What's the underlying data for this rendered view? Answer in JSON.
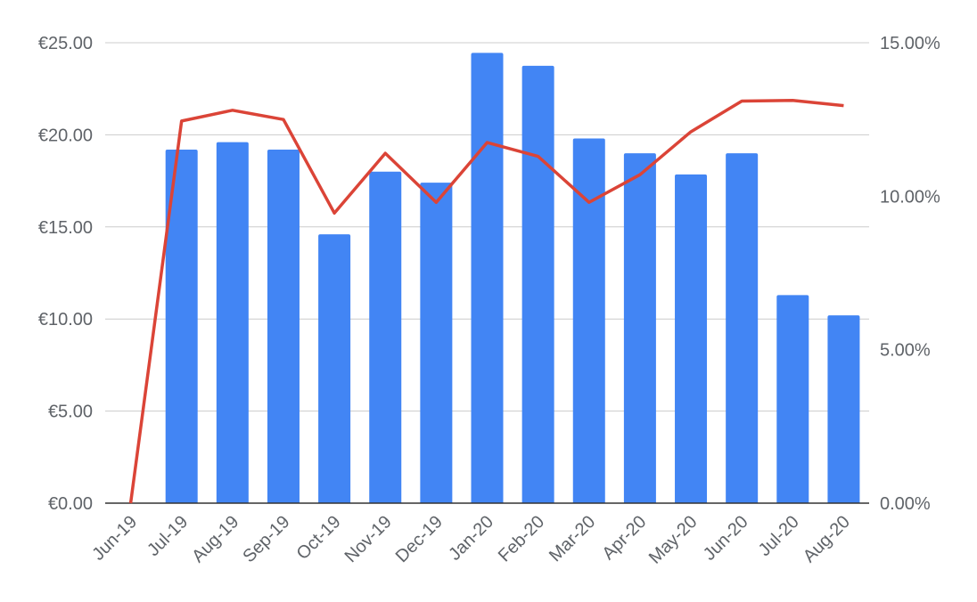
{
  "chart_data": {
    "type": "bar",
    "categories": [
      "Jun-19",
      "Jul-19",
      "Aug-19",
      "Sep-19",
      "Oct-19",
      "Nov-19",
      "Dec-19",
      "Jan-20",
      "Feb-20",
      "Mar-20",
      "Apr-20",
      "May-20",
      "Jun-20",
      "Jul-20",
      "Aug-20"
    ],
    "series": [
      {
        "type": "bar",
        "axis": "left",
        "color": "#4285f4",
        "values": [
          0,
          19.2,
          19.6,
          19.2,
          14.6,
          18.0,
          17.4,
          24.45,
          23.75,
          19.8,
          19.0,
          17.85,
          19.0,
          11.3,
          10.2
        ]
      },
      {
        "type": "line",
        "axis": "right",
        "color": "#db4437",
        "values": [
          0.0,
          12.45,
          12.8,
          12.5,
          9.45,
          11.4,
          9.8,
          11.75,
          11.3,
          9.8,
          10.7,
          12.1,
          13.1,
          13.12,
          12.95
        ]
      }
    ],
    "y_left": {
      "ylim": [
        0,
        25
      ],
      "ticks": [
        0,
        5,
        10,
        15,
        20,
        25
      ],
      "tick_labels": [
        "€0.00",
        "€5.00",
        "€10.00",
        "€15.00",
        "€20.00",
        "€25.00"
      ]
    },
    "y_right": {
      "ylim": [
        0,
        15
      ],
      "ticks": [
        0,
        5,
        10,
        15
      ],
      "tick_labels": [
        "0.00%",
        "5.00%",
        "10.00%",
        "15.00%"
      ]
    },
    "grid": true,
    "gridline_color": "#cccccc",
    "axis_color": "#333333",
    "text_color": "#5f6368"
  }
}
